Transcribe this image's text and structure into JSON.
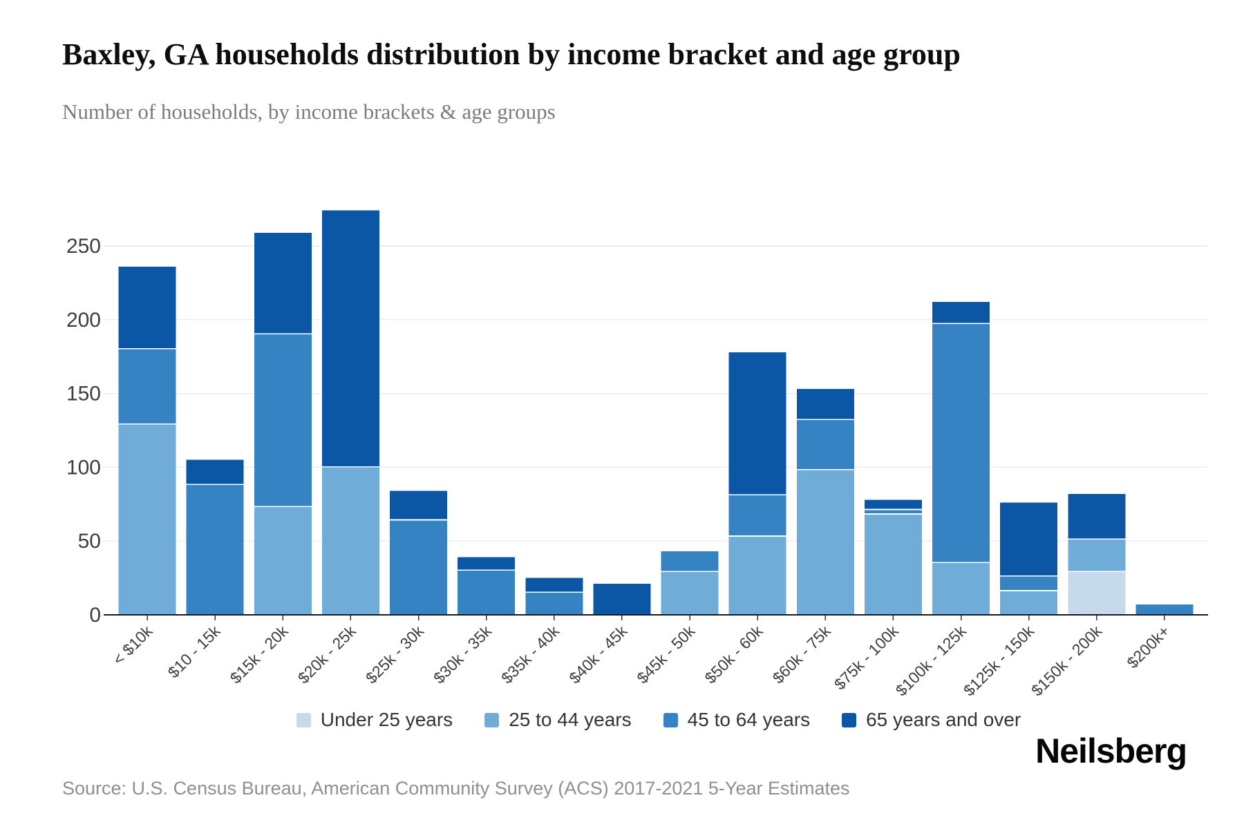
{
  "chart_data": {
    "type": "bar",
    "stacked": true,
    "title": "Baxley, GA households distribution by income bracket and age group",
    "subtitle": "Number of households, by income brackets & age groups",
    "categories": [
      "< $10k",
      "$10 - 15k",
      "$15k - 20k",
      "$20k - 25k",
      "$25k - 30k",
      "$30k - 35k",
      "$35k - 40k",
      "$40k - 45k",
      "$45k - 50k",
      "$50k - 60k",
      "$60k - 75k",
      "$75k - 100k",
      "$100k - 125k",
      "$125k - 150k",
      "$150k - 200k",
      "$200k+"
    ],
    "series": [
      {
        "name": "Under 25 years",
        "color": "#c6daeb",
        "values": [
          0,
          0,
          0,
          0,
          0,
          0,
          0,
          0,
          0,
          0,
          0,
          0,
          0,
          0,
          29,
          0
        ]
      },
      {
        "name": "25 to 44 years",
        "color": "#6fadd8",
        "values": [
          129,
          0,
          73,
          100,
          0,
          0,
          0,
          0,
          29,
          53,
          98,
          68,
          35,
          16,
          22,
          0
        ]
      },
      {
        "name": "45 to 64 years",
        "color": "#3583c2",
        "values": [
          51,
          88,
          117,
          0,
          64,
          30,
          15,
          0,
          14,
          28,
          34,
          3,
          162,
          10,
          0,
          7
        ]
      },
      {
        "name": "65 years and over",
        "color": "#0b57a6",
        "values": [
          56,
          17,
          69,
          174,
          20,
          9,
          10,
          21,
          0,
          97,
          21,
          7,
          15,
          50,
          31,
          0
        ]
      }
    ],
    "totals": [
      236,
      105,
      259,
      274,
      84,
      39,
      25,
      21,
      43,
      178,
      153,
      78,
      212,
      76,
      82,
      7
    ],
    "ylabel": "Number of households",
    "yticks": [
      0,
      50,
      100,
      150,
      200,
      250
    ],
    "ylim": [
      0,
      280
    ],
    "grid": true,
    "legend_position": "bottom"
  },
  "footer": {
    "source": "Source: U.S. Census Bureau, American Community Survey (ACS) 2017-2021 5-Year Estimates",
    "brand": "Neilsberg"
  }
}
